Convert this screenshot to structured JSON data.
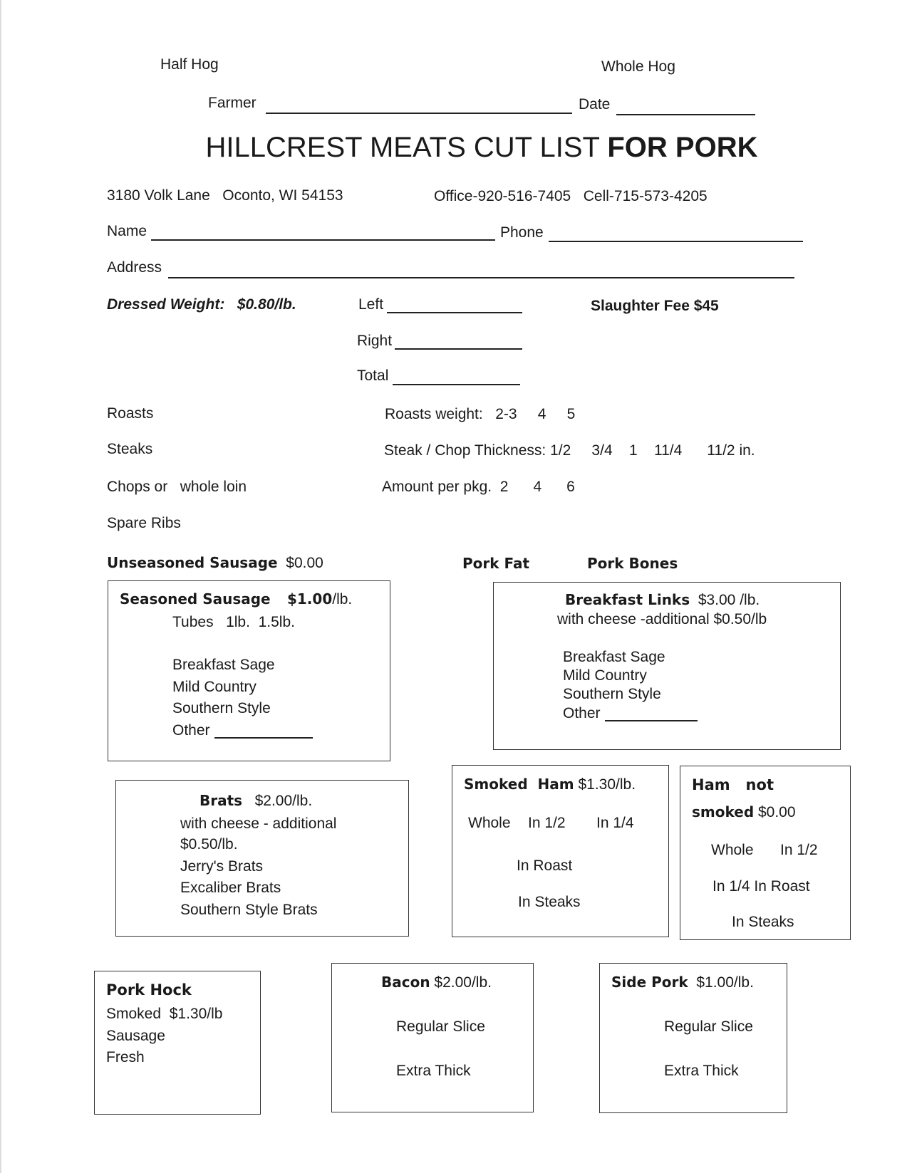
{
  "header": {
    "half_hog": "Half Hog",
    "whole_hog": "Whole Hog",
    "farmer_label": "Farmer",
    "date_label": "Date",
    "title_regular": "HILLCREST MEATS CUT LIST ",
    "title_bold": "FOR PORK",
    "address": "3180 Volk Lane   Oconto, WI 54153",
    "phones": "Office-920-516-7405   Cell-715-573-4205"
  },
  "customer": {
    "name_label": "Name",
    "phone_label": "Phone",
    "address_label": "Address"
  },
  "weights": {
    "dressed_weight": "Dressed Weight:   $0.80/lb.",
    "left_label": "Left",
    "right_label": "Right",
    "total_label": "Total",
    "slaughter_fee": "Slaughter Fee $45"
  },
  "cuts": {
    "roasts": "Roasts",
    "steaks": "Steaks",
    "chops": "Chops or   whole loin",
    "spare_ribs": "Spare Ribs",
    "roasts_weight": "Roasts weight:   2-3     4     5",
    "thickness": "Steak / Chop Thickness: 1/2     3/4    1    11/4      11/2 in.",
    "amount_per_pkg": "Amount per pkg.  2      4      6"
  },
  "extras": {
    "unseasoned_label": "Unseasoned Sausage",
    "unseasoned_price": "$0.00",
    "pork_fat": "Pork Fat",
    "pork_bones": "Pork Bones"
  },
  "seasoned": {
    "title": "Seasoned Sausage",
    "price": "$1.00",
    "unit": "/lb.",
    "tubes": "Tubes   1lb.  1.5lb.",
    "items": [
      "Breakfast Sage",
      "Mild Country",
      "Southern Style",
      "Other"
    ]
  },
  "breakfast_links": {
    "title": "Breakfast Links",
    "price": "$3.00 /lb.",
    "cheese": "with cheese -additional $0.50/lb",
    "items": [
      "Breakfast Sage",
      "Mild Country",
      "Southern Style",
      "Other"
    ]
  },
  "brats": {
    "title": "Brats",
    "price": "$2.00/lb.",
    "lines": [
      "with cheese - additional",
      "$0.50/lb.",
      "Jerry's Brats",
      "Excaliber Brats",
      "Southern Style Brats"
    ]
  },
  "smoked_ham": {
    "title": "Smoked  Ham",
    "price": "$1.30/lb.",
    "options": [
      "Whole",
      "In 1/2",
      "In 1/4",
      "In Roast",
      "In Steaks"
    ]
  },
  "ham_not_smoked": {
    "title1": "Ham   not",
    "title2": "smoked",
    "price": "$0.00",
    "options": [
      "Whole",
      "In 1/2",
      "In 1/4 In Roast",
      "In Steaks"
    ]
  },
  "pork_hock": {
    "title": "Pork Hock",
    "lines": [
      "Smoked  $1.30/lb",
      "Sausage",
      "Fresh"
    ]
  },
  "bacon": {
    "title": "Bacon",
    "price": "$2.00/lb.",
    "options": [
      "Regular Slice",
      "Extra Thick"
    ]
  },
  "side_pork": {
    "title": "Side Pork",
    "price": "$1.00/lb.",
    "options": [
      "Regular Slice",
      "Extra Thick"
    ]
  }
}
